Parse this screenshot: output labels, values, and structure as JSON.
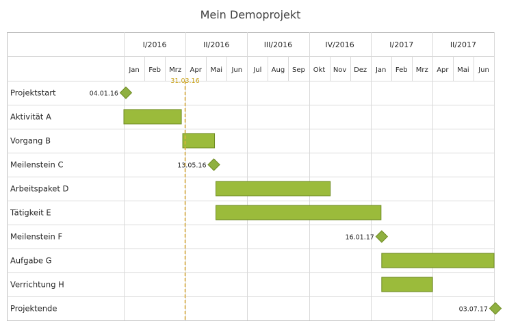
{
  "chart_data": {
    "type": "gantt",
    "title": "Mein Demoprojekt",
    "timeline_start": "2016-01-01",
    "timeline_end": "2017-06-30",
    "quarters": [
      "I/2016",
      "II/2016",
      "III/2016",
      "IV/2016",
      "I/2017",
      "II/2017"
    ],
    "months": [
      "Jan",
      "Feb",
      "Mrz",
      "Apr",
      "Mai",
      "Jun",
      "Jul",
      "Aug",
      "Sep",
      "Okt",
      "Nov",
      "Dez",
      "Jan",
      "Feb",
      "Mrz",
      "Apr",
      "Mai",
      "Jun"
    ],
    "today": {
      "date": "2016-03-31",
      "label": "31.03.16"
    },
    "tasks": [
      {
        "name": "Projektstart",
        "type": "milestone",
        "date": "2016-01-04",
        "label": "04.01.16"
      },
      {
        "name": "Aktivität A",
        "type": "bar",
        "start": "2016-01-01",
        "end": "2016-03-25"
      },
      {
        "name": "Vorgang B",
        "type": "bar",
        "start": "2016-03-28",
        "end": "2016-05-13"
      },
      {
        "name": "Meilenstein C",
        "type": "milestone",
        "date": "2016-05-13",
        "label": "13.05.16"
      },
      {
        "name": "Arbeitspaket D",
        "type": "bar",
        "start": "2016-05-16",
        "end": "2016-10-31"
      },
      {
        "name": "Tätigkeit E",
        "type": "bar",
        "start": "2016-05-16",
        "end": "2017-01-14"
      },
      {
        "name": "Meilenstein F",
        "type": "milestone",
        "date": "2017-01-16",
        "label": "16.01.17"
      },
      {
        "name": "Aufgabe G",
        "type": "bar",
        "start": "2017-01-16",
        "end": "2017-06-30"
      },
      {
        "name": "Verrichtung H",
        "type": "bar",
        "start": "2017-01-16",
        "end": "2017-03-31"
      },
      {
        "name": "Projektende",
        "type": "milestone",
        "date": "2017-07-03",
        "label": "03.07.17"
      }
    ],
    "colors": {
      "bar_fill": "#9bbb3b",
      "bar_stroke": "#6e8a22",
      "milestone_fill": "#8fb040",
      "today_line": "#e2b23a",
      "today_label": "#c8a21a",
      "grid": "#d9d9d9",
      "border": "#bfbfbf"
    }
  }
}
